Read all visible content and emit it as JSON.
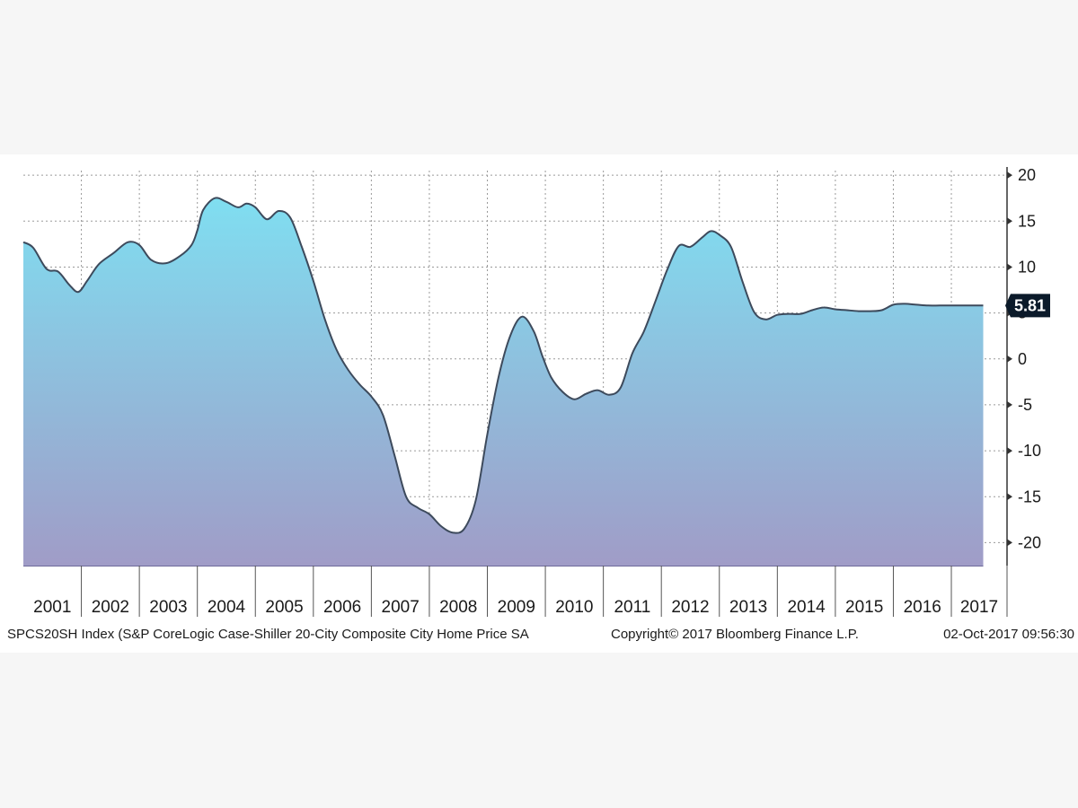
{
  "chart_data": {
    "type": "area",
    "title": "",
    "xlabel": "",
    "ylabel": "",
    "ylim": [
      -22.5,
      20.5
    ],
    "yticks": [
      20,
      15,
      10,
      5,
      0,
      -5,
      -10,
      -15,
      -20
    ],
    "ytick_labels": [
      "20",
      "15",
      "10",
      "5",
      "0",
      "-5",
      "-10",
      "-15",
      "-20"
    ],
    "x_years": [
      "2001",
      "2002",
      "2003",
      "2004",
      "2005",
      "2006",
      "2007",
      "2008",
      "2009",
      "2010",
      "2011",
      "2012",
      "2013",
      "2014",
      "2015",
      "2016",
      "2017"
    ],
    "x_start": 2001.0,
    "x_end": 2017.96,
    "grid": true,
    "last_value": 5.81,
    "last_value_label": "5.81",
    "colors": {
      "line": "#3d4a5c",
      "fill_top": "#7de3f4",
      "fill_bottom": "#a09cc7",
      "grid": "#9a9a9a",
      "label_box": "#0b1a2a"
    },
    "series": [
      {
        "x": [
          2001.0,
          2001.17,
          2001.4,
          2001.6,
          2001.8,
          2001.95,
          2002.1,
          2002.3,
          2002.55,
          2002.8,
          2003.0,
          2003.2,
          2003.45,
          2003.7,
          2003.9,
          2004.0,
          2004.1,
          2004.3,
          2004.5,
          2004.7,
          2004.85,
          2005.0,
          2005.2,
          2005.4,
          2005.6,
          2005.8,
          2006.0,
          2006.2,
          2006.4,
          2006.6,
          2006.8,
          2007.0,
          2007.2,
          2007.4,
          2007.6,
          2007.8,
          2008.0,
          2008.2,
          2008.4,
          2008.6,
          2008.8,
          2009.0,
          2009.2,
          2009.4,
          2009.6,
          2009.8,
          2009.95,
          2010.1,
          2010.3,
          2010.5,
          2010.7,
          2010.9,
          2011.1,
          2011.3,
          2011.5,
          2011.7,
          2011.9,
          2012.1,
          2012.3,
          2012.5,
          2012.7,
          2012.85,
          2013.0,
          2013.2,
          2013.4,
          2013.6,
          2013.8,
          2014.0,
          2014.2,
          2014.4,
          2014.6,
          2014.8,
          2015.0,
          2015.2,
          2015.4,
          2015.6,
          2015.8,
          2016.0,
          2016.2,
          2016.4,
          2016.6,
          2016.8,
          2017.0,
          2017.2,
          2017.4,
          2017.55
        ],
        "y": [
          12.7,
          12.1,
          9.8,
          9.5,
          8.0,
          7.3,
          8.5,
          10.3,
          11.5,
          12.7,
          12.4,
          10.8,
          10.4,
          11.2,
          12.4,
          14.0,
          16.2,
          17.5,
          17.1,
          16.5,
          16.9,
          16.5,
          15.2,
          16.1,
          15.4,
          12.2,
          8.5,
          4.3,
          1.0,
          -1.2,
          -2.8,
          -4.1,
          -6.1,
          -10.5,
          -15.0,
          -16.2,
          -16.9,
          -18.2,
          -18.9,
          -18.5,
          -15.4,
          -8.2,
          -1.8,
          2.6,
          4.6,
          3.0,
          0.3,
          -2.0,
          -3.6,
          -4.4,
          -3.8,
          -3.4,
          -3.9,
          -3.1,
          0.6,
          3.0,
          6.3,
          9.7,
          12.3,
          12.2,
          13.2,
          13.9,
          13.5,
          12.2,
          8.4,
          5.1,
          4.3,
          4.8,
          4.9,
          4.9,
          5.3,
          5.6,
          5.4,
          5.3,
          5.2,
          5.2,
          5.3,
          5.9,
          6.0,
          5.9,
          5.81,
          5.81,
          5.81,
          5.81,
          5.81,
          5.81
        ]
      }
    ]
  },
  "footer": {
    "left": "SPCS20SH Index (S&P CoreLogic Case-Shiller 20-City Composite City Home Price SA",
    "center": "Copyright© 2017 Bloomberg Finance L.P.",
    "right": "02-Oct-2017 09:56:30"
  }
}
